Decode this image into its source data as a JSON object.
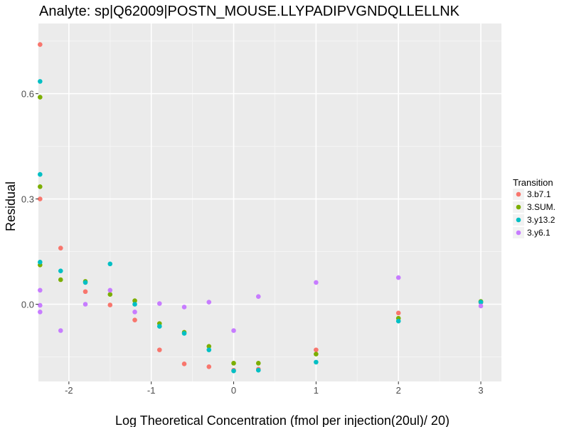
{
  "chart_data": {
    "type": "scatter",
    "title": "Analyte: sp|Q62009|POSTN_MOUSE.LLYPADIPVGNDQLLELLNK",
    "xlabel": "Log Theoretical Concentration (fmol per injection(20ul)/ 20)",
    "ylabel": "Residual",
    "xlim": [
      -2.37,
      3.25
    ],
    "ylim": [
      -0.22,
      0.8
    ],
    "xticks": [
      -2,
      -1,
      0,
      1,
      2,
      3
    ],
    "yticks": [
      0.0,
      0.3,
      0.6
    ],
    "xtick_labels": [
      "-2",
      "-1",
      "0",
      "1",
      "2",
      "3"
    ],
    "ytick_labels": [
      "0.0",
      "0.3",
      "0.6"
    ],
    "grid": true,
    "legend": {
      "title": "Transition",
      "position": "right"
    },
    "series": [
      {
        "name": "3.b7.1",
        "color": "#F8766D",
        "points": [
          {
            "x": -2.35,
            "y": 0.74
          },
          {
            "x": -2.35,
            "y": 0.3
          },
          {
            "x": -2.1,
            "y": 0.16
          },
          {
            "x": -1.8,
            "y": 0.036
          },
          {
            "x": -1.5,
            "y": -0.002
          },
          {
            "x": -1.2,
            "y": -0.045
          },
          {
            "x": -0.9,
            "y": -0.13
          },
          {
            "x": -0.6,
            "y": -0.17
          },
          {
            "x": -0.3,
            "y": -0.178
          },
          {
            "x": 0.0,
            "y": -0.188
          },
          {
            "x": 0.3,
            "y": -0.185
          },
          {
            "x": 1.0,
            "y": -0.13
          },
          {
            "x": 2.0,
            "y": -0.025
          },
          {
            "x": 3.0,
            "y": 0.005
          }
        ]
      },
      {
        "name": "3.SUM.",
        "color": "#7CAE00",
        "points": [
          {
            "x": -2.35,
            "y": 0.59
          },
          {
            "x": -2.35,
            "y": 0.335
          },
          {
            "x": -2.35,
            "y": 0.112
          },
          {
            "x": -2.1,
            "y": 0.07
          },
          {
            "x": -1.8,
            "y": 0.065
          },
          {
            "x": -1.5,
            "y": 0.028
          },
          {
            "x": -1.2,
            "y": 0.01
          },
          {
            "x": -0.9,
            "y": -0.055
          },
          {
            "x": -0.6,
            "y": -0.08
          },
          {
            "x": -0.3,
            "y": -0.12
          },
          {
            "x": 0.0,
            "y": -0.168
          },
          {
            "x": 0.3,
            "y": -0.168
          },
          {
            "x": 1.0,
            "y": -0.142
          },
          {
            "x": 2.0,
            "y": -0.04
          },
          {
            "x": 3.0,
            "y": 0.008
          }
        ]
      },
      {
        "name": "3.y13.2",
        "color": "#00BFC4",
        "points": [
          {
            "x": -2.35,
            "y": 0.635
          },
          {
            "x": -2.35,
            "y": 0.37
          },
          {
            "x": -2.35,
            "y": 0.12
          },
          {
            "x": -2.1,
            "y": 0.095
          },
          {
            "x": -1.8,
            "y": 0.062
          },
          {
            "x": -1.5,
            "y": 0.115
          },
          {
            "x": -1.2,
            "y": 0.0
          },
          {
            "x": -0.9,
            "y": -0.063
          },
          {
            "x": -0.6,
            "y": -0.083
          },
          {
            "x": -0.3,
            "y": -0.13
          },
          {
            "x": 0.0,
            "y": -0.19
          },
          {
            "x": 0.3,
            "y": -0.188
          },
          {
            "x": 1.0,
            "y": -0.165
          },
          {
            "x": 2.0,
            "y": -0.048
          },
          {
            "x": 3.0,
            "y": 0.006
          }
        ]
      },
      {
        "name": "3.y6.1",
        "color": "#C77CFF",
        "points": [
          {
            "x": -2.35,
            "y": 0.04
          },
          {
            "x": -2.35,
            "y": -0.003
          },
          {
            "x": -2.35,
            "y": -0.022
          },
          {
            "x": -2.1,
            "y": -0.075
          },
          {
            "x": -1.8,
            "y": 0.0
          },
          {
            "x": -1.5,
            "y": 0.04
          },
          {
            "x": -1.2,
            "y": -0.022
          },
          {
            "x": -0.9,
            "y": 0.002
          },
          {
            "x": -0.6,
            "y": -0.008
          },
          {
            "x": -0.3,
            "y": 0.006
          },
          {
            "x": 0.0,
            "y": -0.075
          },
          {
            "x": 0.3,
            "y": 0.022
          },
          {
            "x": 1.0,
            "y": 0.062
          },
          {
            "x": 2.0,
            "y": 0.076
          },
          {
            "x": 3.0,
            "y": -0.005
          }
        ]
      }
    ]
  }
}
